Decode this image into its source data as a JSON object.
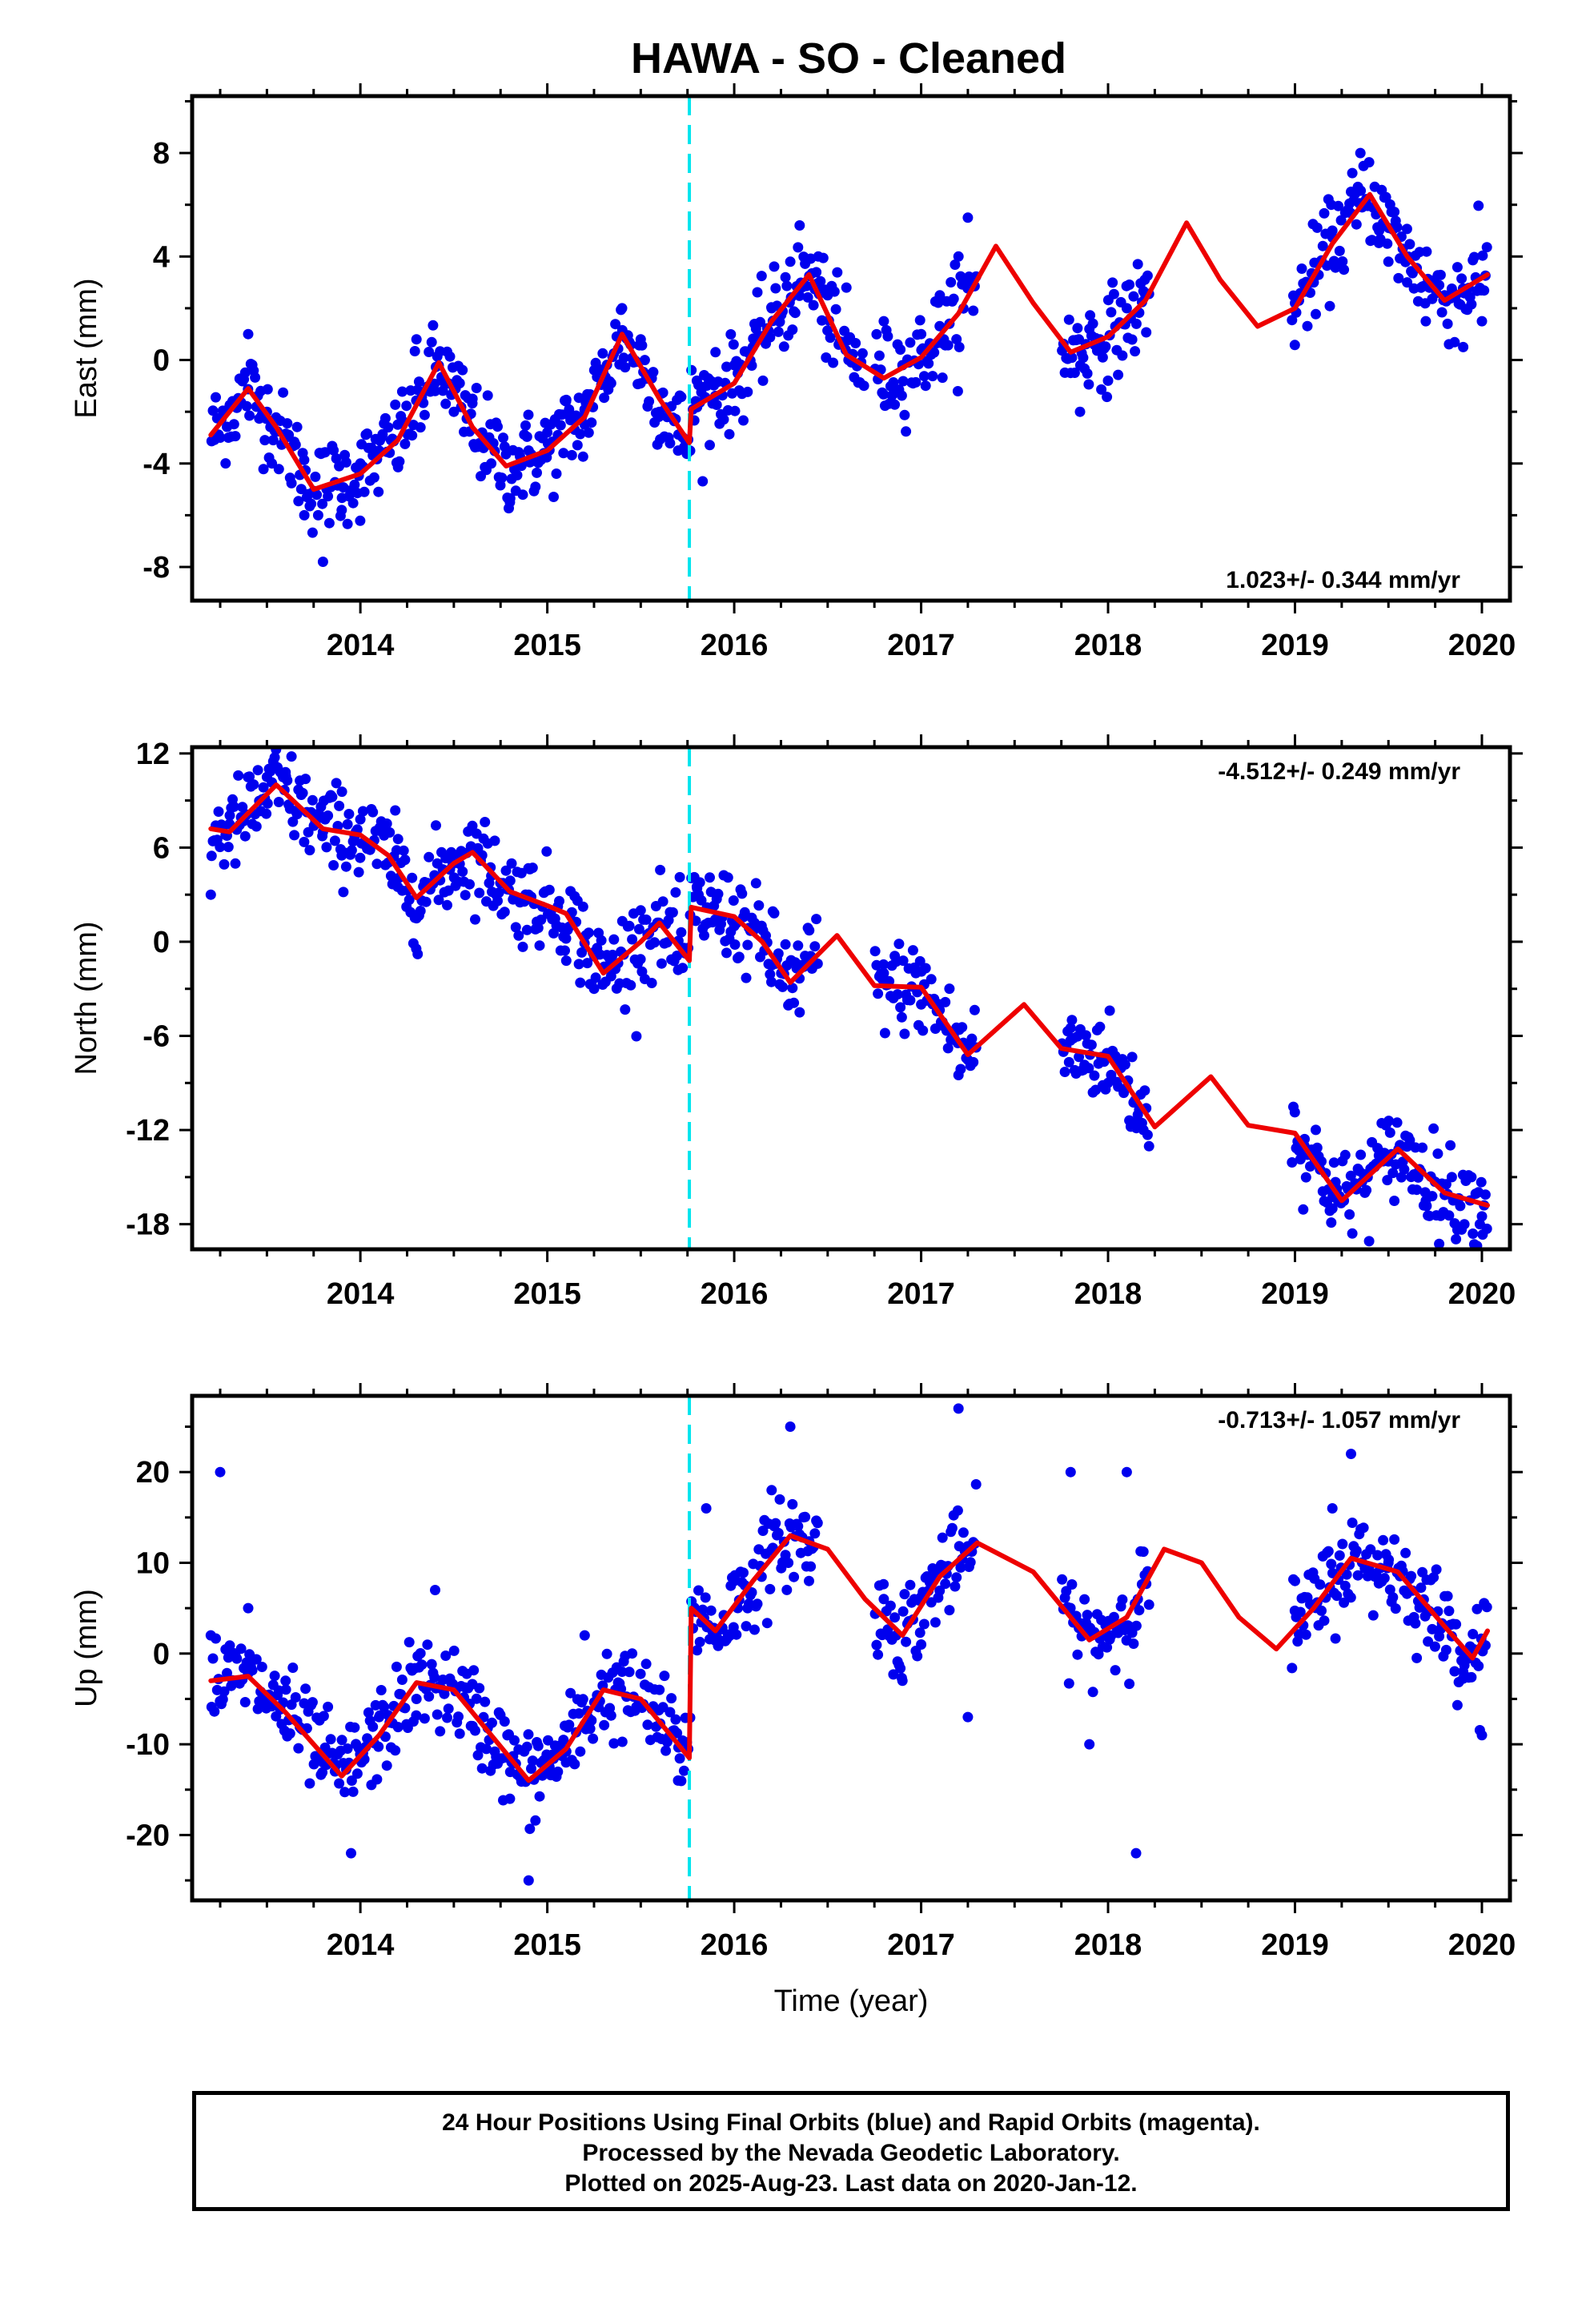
{
  "title": "HAWA  - SO - Cleaned",
  "footer": {
    "line1": "24 Hour Positions Using Final Orbits (blue) and Rapid Orbits (magenta).",
    "line2": "Processed by the Nevada Geodetic Laboratory.",
    "line3": "Plotted on 2025-Aug-23. Last data on 2020-Jan-12."
  },
  "colors": {
    "data_points": "#0000ee",
    "model_fit": "#ee0000",
    "offset_line": "#00e5ee"
  },
  "chart_data": [
    {
      "type": "scatter",
      "panel": "east",
      "ylabel": "East (mm)",
      "xlabel": "",
      "xlim": [
        2013.1,
        2020.15
      ],
      "ylim": [
        -9.3,
        10.2
      ],
      "xticks": [
        "2014",
        "2015",
        "2016",
        "2017",
        "2018",
        "2019",
        "2020"
      ],
      "yticks": [
        "-8",
        "-4",
        "0",
        "4",
        "8"
      ],
      "velocity": "1.023+/- 0.344 mm/yr",
      "offset_epoch": 2015.76,
      "data_segments": [
        [
          2013.2,
          2015.76
        ],
        [
          2015.76,
          2016.7
        ],
        [
          2016.75,
          2017.3
        ],
        [
          2017.75,
          2018.22
        ],
        [
          2018.98,
          2020.03
        ]
      ],
      "series": [
        {
          "values": [
            [
              2013.2,
              -2.9
            ],
            [
              2013.4,
              -1.1
            ],
            [
              2013.55,
              -2.6
            ],
            [
              2013.75,
              -5.0
            ],
            [
              2014.0,
              -4.4
            ],
            [
              2014.2,
              -3.1
            ],
            [
              2014.42,
              -0.1
            ],
            [
              2014.6,
              -2.6
            ],
            [
              2014.78,
              -4.1
            ],
            [
              2015.0,
              -3.5
            ],
            [
              2015.2,
              -2.2
            ],
            [
              2015.4,
              1.0
            ],
            [
              2015.6,
              -1.5
            ],
            [
              2015.76,
              -3.2
            ],
            [
              2015.77,
              -1.9
            ],
            [
              2016.0,
              -0.9
            ],
            [
              2016.2,
              1.5
            ],
            [
              2016.4,
              3.3
            ],
            [
              2016.6,
              0.2
            ],
            [
              2016.8,
              -0.7
            ],
            [
              2017.0,
              0.1
            ],
            [
              2017.2,
              1.8
            ],
            [
              2017.4,
              4.4
            ],
            [
              2017.6,
              2.2
            ],
            [
              2017.8,
              0.3
            ],
            [
              2018.0,
              0.9
            ],
            [
              2018.2,
              2.3
            ],
            [
              2018.42,
              5.3
            ],
            [
              2018.6,
              3.1
            ],
            [
              2018.8,
              1.3
            ],
            [
              2019.0,
              2.0
            ],
            [
              2019.2,
              4.5
            ],
            [
              2019.4,
              6.4
            ],
            [
              2019.6,
              4.0
            ],
            [
              2019.8,
              2.3
            ],
            [
              2020.03,
              3.3
            ]
          ]
        },
        {
          "values": [
            [
              2013.25,
              -3.0
            ],
            [
              2013.3,
              -1.8
            ],
            [
              2013.4,
              1.0
            ],
            [
              2013.5,
              -2.0
            ],
            [
              2013.6,
              -3.0
            ],
            [
              2013.7,
              -6.0
            ],
            [
              2013.8,
              -7.8
            ],
            [
              2013.9,
              -5.8
            ],
            [
              2014.0,
              -4.0
            ],
            [
              2014.1,
              -3.5
            ],
            [
              2014.2,
              -2.5
            ],
            [
              2014.3,
              0.8
            ],
            [
              2014.4,
              -1.2
            ],
            [
              2014.5,
              -2.0
            ],
            [
              2014.6,
              -1.5
            ],
            [
              2014.7,
              -4.0
            ],
            [
              2014.8,
              -5.5
            ],
            [
              2014.9,
              -3.5
            ],
            [
              2015.0,
              -2.8
            ],
            [
              2015.1,
              -1.6
            ],
            [
              2015.2,
              -2.5
            ],
            [
              2015.3,
              -0.5
            ],
            [
              2015.4,
              2.0
            ],
            [
              2015.5,
              0.8
            ],
            [
              2015.6,
              -2.0
            ],
            [
              2015.7,
              -3.5
            ],
            [
              2015.8,
              -0.8
            ],
            [
              2015.9,
              0.3
            ],
            [
              2016.0,
              -0.2
            ],
            [
              2016.1,
              0.5
            ],
            [
              2016.2,
              2.0
            ],
            [
              2016.3,
              3.8
            ],
            [
              2016.35,
              5.2
            ],
            [
              2016.45,
              4.0
            ],
            [
              2016.5,
              2.5
            ],
            [
              2016.6,
              2.8
            ],
            [
              2016.8,
              1.5
            ],
            [
              2016.9,
              -0.2
            ],
            [
              2017.0,
              1.0
            ],
            [
              2017.1,
              2.5
            ],
            [
              2017.2,
              4.0
            ],
            [
              2017.25,
              5.5
            ],
            [
              2017.8,
              -0.5
            ],
            [
              2017.85,
              -2.0
            ],
            [
              2017.9,
              1.2
            ],
            [
              2018.0,
              -0.8
            ],
            [
              2018.1,
              2.0
            ],
            [
              2018.2,
              2.5
            ],
            [
              2019.0,
              2.2
            ],
            [
              2019.1,
              3.0
            ],
            [
              2019.2,
              5.0
            ],
            [
              2019.3,
              6.5
            ],
            [
              2019.35,
              8.0
            ],
            [
              2019.45,
              5.0
            ],
            [
              2019.5,
              3.8
            ],
            [
              2019.6,
              3.0
            ],
            [
              2019.7,
              1.5
            ],
            [
              2019.8,
              2.5
            ],
            [
              2019.9,
              0.5
            ],
            [
              2020.0,
              1.5
            ]
          ]
        }
      ]
    },
    {
      "type": "scatter",
      "panel": "north",
      "ylabel": "North (mm)",
      "xlabel": "",
      "xlim": [
        2013.1,
        2020.15
      ],
      "ylim": [
        -19.6,
        12.4
      ],
      "xticks": [
        "2014",
        "2015",
        "2016",
        "2017",
        "2018",
        "2019",
        "2020"
      ],
      "yticks": [
        "-18",
        "-12",
        "-6",
        "0",
        "6",
        "12"
      ],
      "velocity": "-4.512+/- 0.249 mm/yr",
      "offset_epoch": 2015.76,
      "data_segments": [
        [
          2013.2,
          2015.76
        ],
        [
          2015.76,
          2016.45
        ],
        [
          2016.75,
          2017.3
        ],
        [
          2017.75,
          2018.22
        ],
        [
          2018.98,
          2020.03
        ]
      ],
      "series": [
        {
          "values": [
            [
              2013.2,
              7.2
            ],
            [
              2013.3,
              7.0
            ],
            [
              2013.55,
              10.0
            ],
            [
              2013.8,
              7.2
            ],
            [
              2014.0,
              6.8
            ],
            [
              2014.15,
              5.5
            ],
            [
              2014.3,
              2.8
            ],
            [
              2014.5,
              5.0
            ],
            [
              2014.6,
              5.7
            ],
            [
              2014.8,
              3.2
            ],
            [
              2015.0,
              2.3
            ],
            [
              2015.1,
              1.8
            ],
            [
              2015.3,
              -2.0
            ],
            [
              2015.5,
              0.0
            ],
            [
              2015.6,
              1.2
            ],
            [
              2015.76,
              -1.2
            ],
            [
              2015.77,
              2.2
            ],
            [
              2016.0,
              1.6
            ],
            [
              2016.15,
              0.0
            ],
            [
              2016.3,
              -2.6
            ],
            [
              2016.55,
              0.4
            ],
            [
              2016.75,
              -2.8
            ],
            [
              2017.0,
              -2.9
            ],
            [
              2017.25,
              -7.2
            ],
            [
              2017.55,
              -4.0
            ],
            [
              2017.75,
              -6.8
            ],
            [
              2018.0,
              -7.3
            ],
            [
              2018.25,
              -11.8
            ],
            [
              2018.55,
              -8.6
            ],
            [
              2018.75,
              -11.7
            ],
            [
              2019.0,
              -12.2
            ],
            [
              2019.25,
              -16.5
            ],
            [
              2019.55,
              -13.2
            ],
            [
              2019.8,
              -16.0
            ],
            [
              2020.03,
              -16.8
            ]
          ]
        },
        {
          "values": [
            [
              2013.2,
              3.0
            ],
            [
              2013.3,
              7.5
            ],
            [
              2013.5,
              10.5
            ],
            [
              2013.6,
              10.8
            ],
            [
              2013.8,
              7.0
            ],
            [
              2013.9,
              5.5
            ],
            [
              2014.0,
              7.8
            ],
            [
              2014.2,
              3.5
            ],
            [
              2014.3,
              1.5
            ],
            [
              2014.5,
              5.5
            ],
            [
              2014.7,
              4.2
            ],
            [
              2014.9,
              3.0
            ],
            [
              2015.1,
              0.2
            ],
            [
              2015.25,
              -3.0
            ],
            [
              2015.5,
              2.0
            ],
            [
              2015.7,
              -1.8
            ],
            [
              2015.8,
              3.5
            ],
            [
              2016.0,
              1.0
            ],
            [
              2016.2,
              -1.5
            ],
            [
              2016.35,
              -4.5
            ],
            [
              2016.8,
              -2.0
            ],
            [
              2017.0,
              -4.0
            ],
            [
              2017.2,
              -8.5
            ],
            [
              2017.8,
              -5.5
            ],
            [
              2018.0,
              -9.0
            ],
            [
              2018.15,
              -11.5
            ],
            [
              2019.05,
              -13.0
            ],
            [
              2019.2,
              -17.0
            ],
            [
              2019.5,
              -14.0
            ],
            [
              2019.7,
              -16.5
            ],
            [
              2020.0,
              -17.5
            ]
          ]
        }
      ]
    },
    {
      "type": "scatter",
      "panel": "up",
      "ylabel": "Up (mm)",
      "xlabel": "Time (year)",
      "xlim": [
        2013.1,
        2020.15
      ],
      "ylim": [
        -27.2,
        28.4
      ],
      "xticks": [
        "2014",
        "2015",
        "2016",
        "2017",
        "2018",
        "2019",
        "2020"
      ],
      "yticks": [
        "-20",
        "-10",
        "0",
        "10",
        "20"
      ],
      "velocity": "-0.713+/- 1.057 mm/yr",
      "offset_epoch": 2015.76,
      "data_segments": [
        [
          2013.2,
          2015.76
        ],
        [
          2015.76,
          2016.45
        ],
        [
          2016.75,
          2017.3
        ],
        [
          2017.75,
          2018.22
        ],
        [
          2018.98,
          2020.03
        ]
      ],
      "series": [
        {
          "values": [
            [
              2013.2,
              -3.0
            ],
            [
              2013.4,
              -2.5
            ],
            [
              2013.6,
              -6.5
            ],
            [
              2013.9,
              -13.5
            ],
            [
              2014.1,
              -9.0
            ],
            [
              2014.3,
              -3.2
            ],
            [
              2014.5,
              -4.0
            ],
            [
              2014.7,
              -9.0
            ],
            [
              2014.9,
              -14.0
            ],
            [
              2015.1,
              -10.5
            ],
            [
              2015.3,
              -4.0
            ],
            [
              2015.5,
              -5.0
            ],
            [
              2015.76,
              -11.5
            ],
            [
              2015.77,
              5.0
            ],
            [
              2015.9,
              2.5
            ],
            [
              2016.1,
              8.0
            ],
            [
              2016.3,
              13.0
            ],
            [
              2016.5,
              11.5
            ],
            [
              2016.7,
              6.0
            ],
            [
              2016.9,
              2.0
            ],
            [
              2017.1,
              8.5
            ],
            [
              2017.3,
              12.2
            ],
            [
              2017.6,
              9.0
            ],
            [
              2017.9,
              1.5
            ],
            [
              2018.1,
              4.0
            ],
            [
              2018.3,
              11.5
            ],
            [
              2018.5,
              10.0
            ],
            [
              2018.7,
              4.0
            ],
            [
              2018.9,
              0.5
            ],
            [
              2019.1,
              5.0
            ],
            [
              2019.3,
              10.5
            ],
            [
              2019.55,
              9.0
            ],
            [
              2019.8,
              3.0
            ],
            [
              2019.95,
              -0.5
            ],
            [
              2020.03,
              2.5
            ]
          ]
        },
        {
          "values": [
            [
              2013.2,
              2.0
            ],
            [
              2013.25,
              20.0
            ],
            [
              2013.4,
              5.0
            ],
            [
              2013.6,
              -3.0
            ],
            [
              2013.8,
              -12.0
            ],
            [
              2013.95,
              -22.0
            ],
            [
              2014.1,
              -7.0
            ],
            [
              2014.3,
              -5.0
            ],
            [
              2014.4,
              7.0
            ],
            [
              2014.6,
              -8.0
            ],
            [
              2014.8,
              -16.0
            ],
            [
              2014.9,
              -25.0
            ],
            [
              2015.1,
              -12.0
            ],
            [
              2015.2,
              2.0
            ],
            [
              2015.4,
              -2.0
            ],
            [
              2015.6,
              -4.0
            ],
            [
              2015.7,
              -14.0
            ],
            [
              2015.85,
              16.0
            ],
            [
              2016.0,
              8.0
            ],
            [
              2016.2,
              18.0
            ],
            [
              2016.3,
              25.0
            ],
            [
              2016.4,
              8.0
            ],
            [
              2016.8,
              6.0
            ],
            [
              2016.9,
              -3.0
            ],
            [
              2017.0,
              1.0
            ],
            [
              2017.2,
              27.0
            ],
            [
              2017.25,
              -7.0
            ],
            [
              2017.8,
              20.0
            ],
            [
              2017.9,
              -10.0
            ],
            [
              2018.0,
              2.0
            ],
            [
              2018.1,
              20.0
            ],
            [
              2018.15,
              -22.0
            ],
            [
              2019.0,
              8.0
            ],
            [
              2019.2,
              16.0
            ],
            [
              2019.3,
              22.0
            ],
            [
              2019.5,
              10.0
            ],
            [
              2019.7,
              5.0
            ],
            [
              2019.9,
              -2.0
            ],
            [
              2020.0,
              -9.0
            ]
          ]
        }
      ]
    }
  ]
}
